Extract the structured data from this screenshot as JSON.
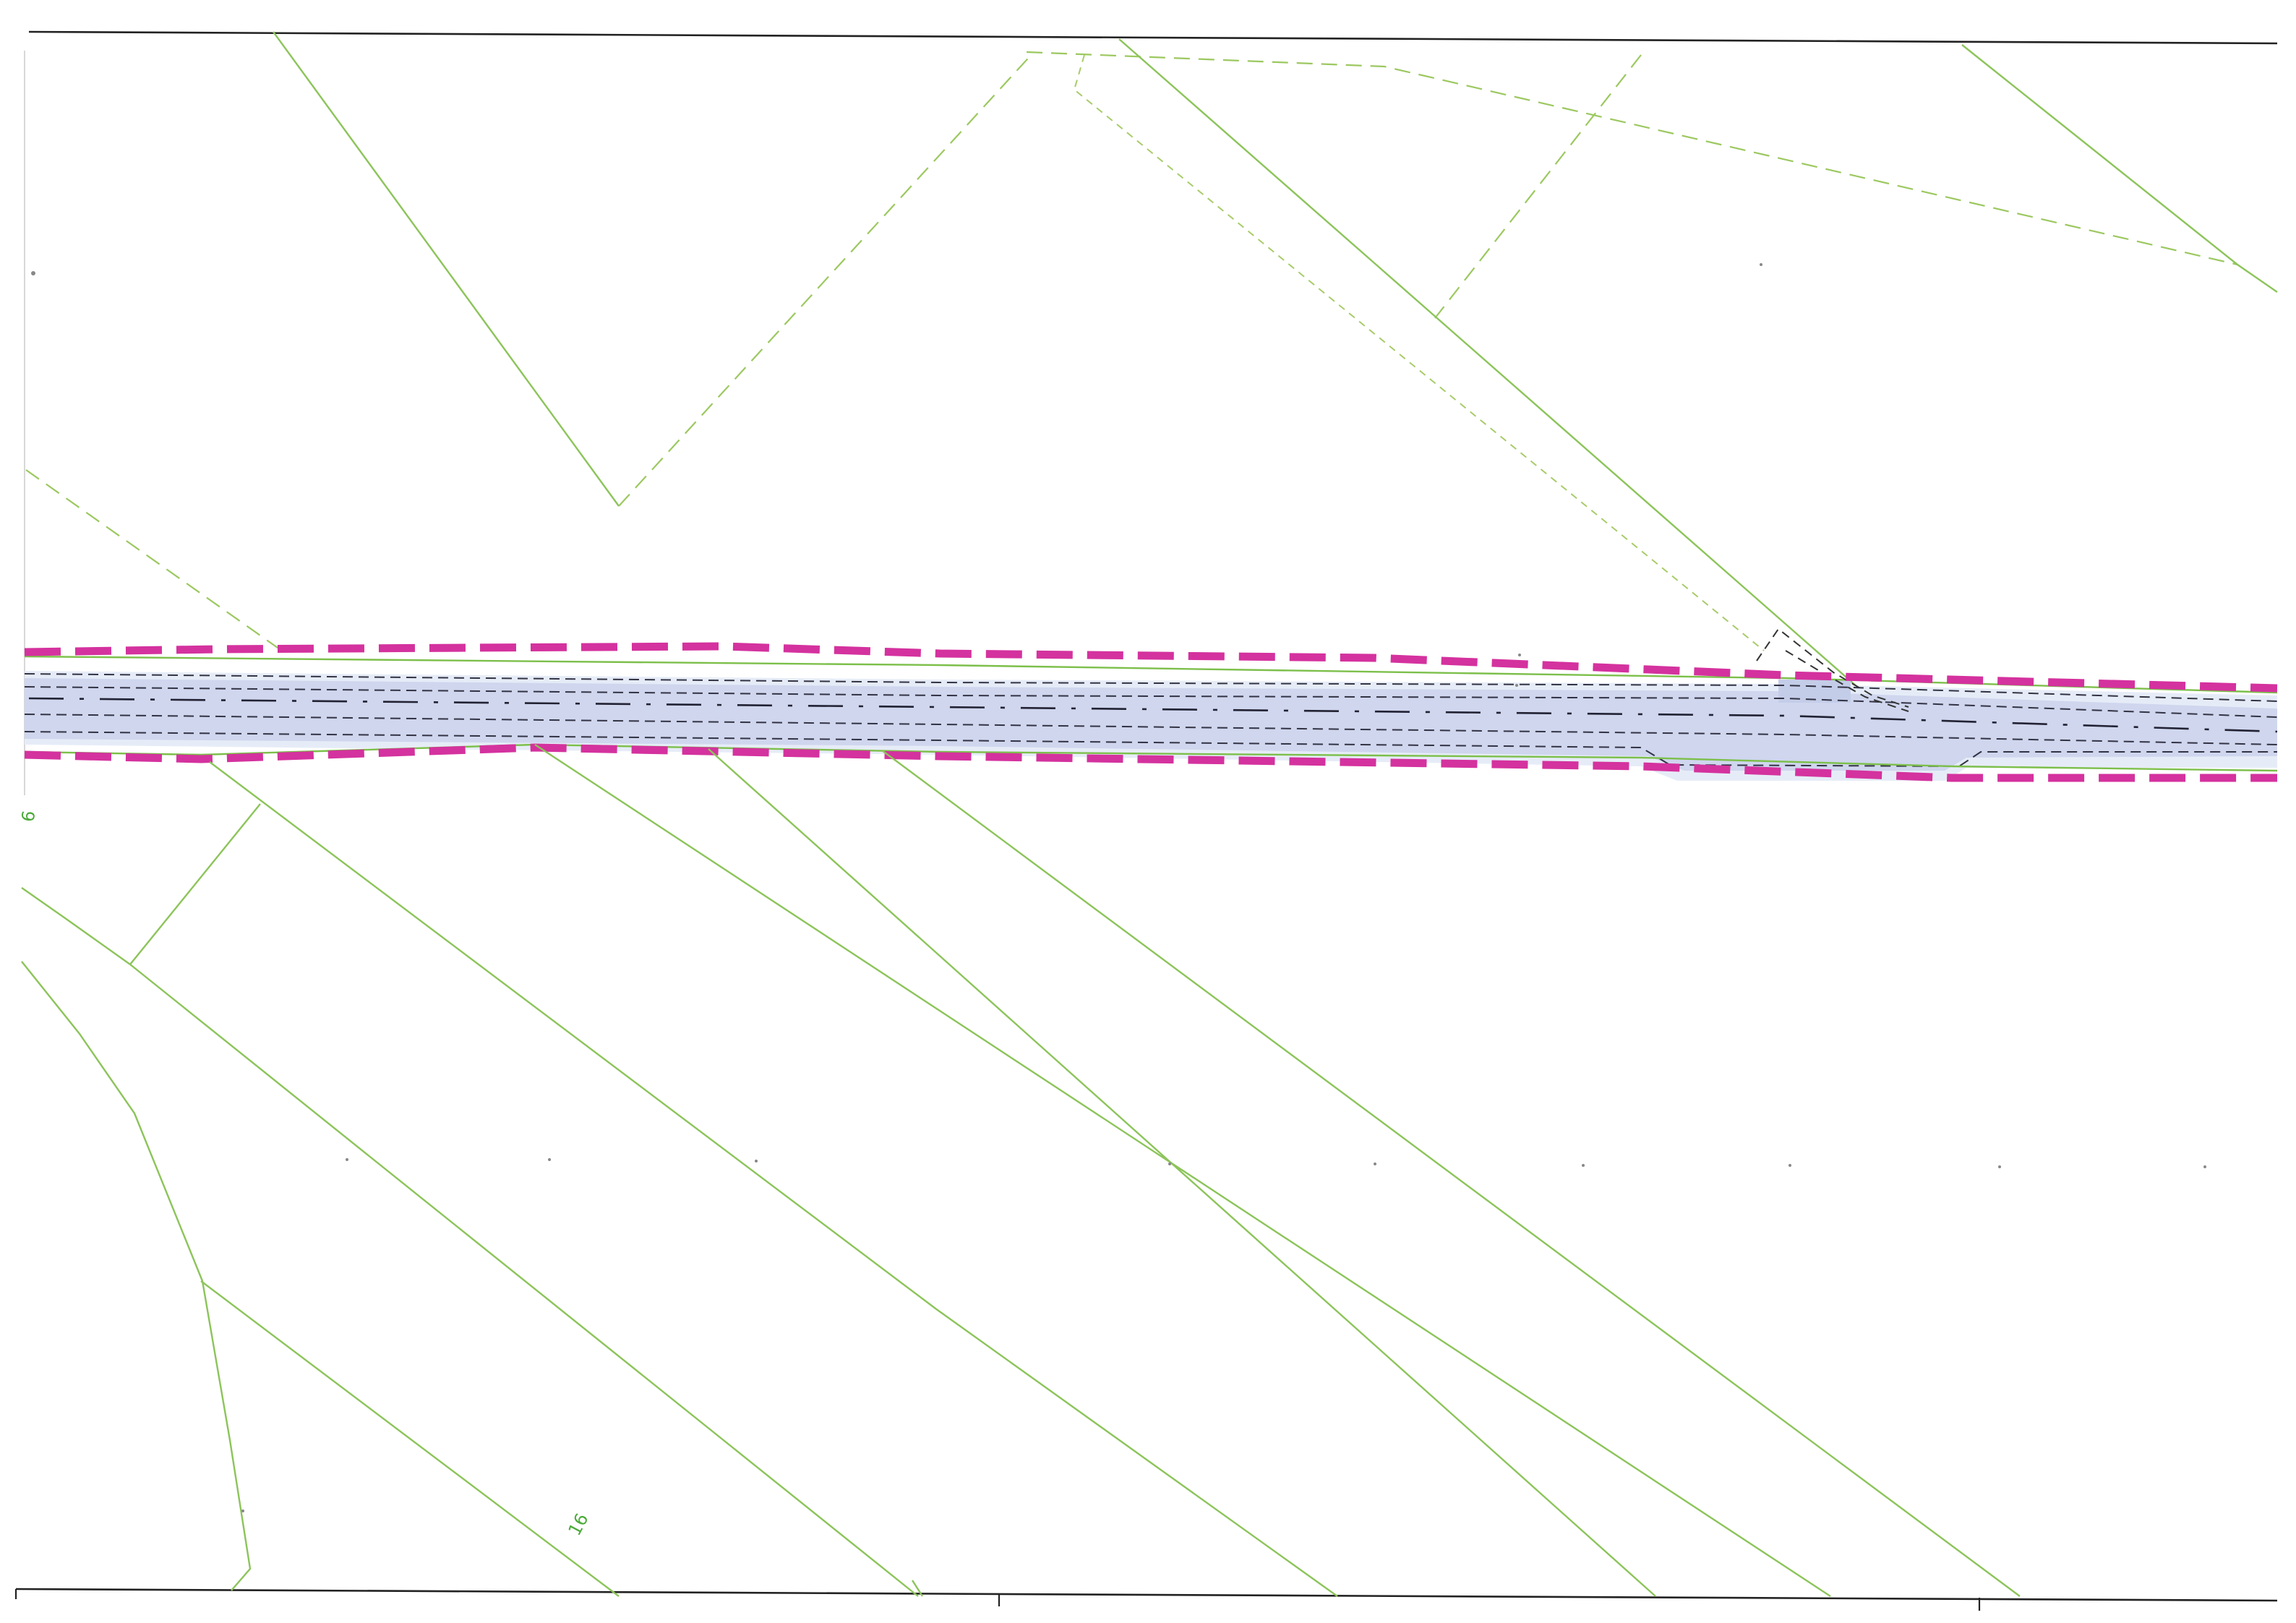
{
  "map": {
    "parcel_labels": [
      {
        "id": "left",
        "text": "6"
      },
      {
        "id": "bottom",
        "text": "16"
      }
    ],
    "colors": {
      "parcel_boundary": "#8cc45a",
      "road_surface": "#cfd6ee",
      "road_limit": "#d4329e",
      "frame": "#222222"
    },
    "features": [
      "cadastral-parcel-boundaries",
      "road-corridor",
      "road-limit-dashed-magenta",
      "road-centerline",
      "lateral-widening"
    ]
  }
}
